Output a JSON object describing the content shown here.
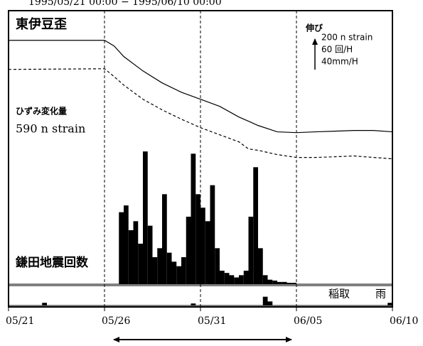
{
  "chart_data": [
    {
      "type": "line",
      "title": "東伊豆歪",
      "subtitle": "1995/05/21 00:00 − 1995/06/10 00:00",
      "annotations": [
        "伸び",
        "200 n strain",
        "60 回/H",
        "40mm/H",
        "ひずみ変化量",
        "590 n strain"
      ],
      "xlim": [
        0,
        20
      ],
      "xticks": [
        {
          "value": 0,
          "label": "05/21"
        },
        {
          "value": 5,
          "label": "05/26"
        },
        {
          "value": 10,
          "label": "05/31"
        },
        {
          "value": 15,
          "label": "06/05"
        },
        {
          "value": 20,
          "label": "06/10"
        }
      ],
      "grid": true,
      "ylim": [
        -1830,
        210
      ],
      "x": [
        0,
        5,
        5.5,
        6,
        7,
        8,
        9,
        10,
        11,
        12,
        12.5,
        13,
        14,
        15,
        16,
        17,
        18,
        19,
        20
      ],
      "series": [
        {
          "color": "#000000",
          "dashed": false,
          "values": [
            -10,
            -10,
            -52,
            -130,
            -237,
            -326,
            -395,
            -447,
            -500,
            -579,
            -610,
            -642,
            -689,
            -695,
            -689,
            -684,
            -679,
            -679,
            -689
          ]
        },
        {
          "color": "#000000",
          "dashed": true,
          "values": [
            -226,
            -221,
            -279,
            -342,
            -447,
            -526,
            -595,
            -658,
            -711,
            -763,
            -816,
            -826,
            -858,
            -879,
            -879,
            -874,
            -868,
            -879,
            -889
          ]
        }
      ]
    },
    {
      "type": "histogram",
      "title": "鎌田地震回数",
      "color": "#000000",
      "ylim": [
        0,
        600
      ],
      "bins": [
        5,
        5.25,
        5.5,
        5.75,
        6,
        6.25,
        6.5,
        6.75,
        7,
        7.25,
        7.5,
        7.75,
        8,
        8.25,
        8.5,
        8.75,
        9,
        9.25,
        9.5,
        9.75,
        10,
        10.25,
        10.5,
        10.75,
        11,
        11.25,
        11.5,
        11.75,
        12,
        12.25,
        12.5,
        12.75,
        13,
        13.25,
        13.5,
        13.75,
        14,
        14.25,
        14.5,
        14.75,
        15
      ],
      "values": [
        0,
        0,
        0,
        160,
        175,
        120,
        140,
        90,
        295,
        130,
        60,
        80,
        200,
        70,
        50,
        40,
        60,
        150,
        290,
        200,
        170,
        140,
        220,
        80,
        30,
        25,
        20,
        15,
        20,
        30,
        150,
        260,
        80,
        20,
        10,
        8,
        5,
        5,
        3,
        3
      ]
    },
    {
      "type": "bar",
      "title": "稲取",
      "label": "雨",
      "color": "#000000",
      "ylim": [
        0,
        30
      ],
      "x": [
        1.75,
        9.5,
        13.25,
        13.5,
        19.75
      ],
      "values": [
        4,
        3,
        13,
        6,
        4
      ]
    }
  ]
}
